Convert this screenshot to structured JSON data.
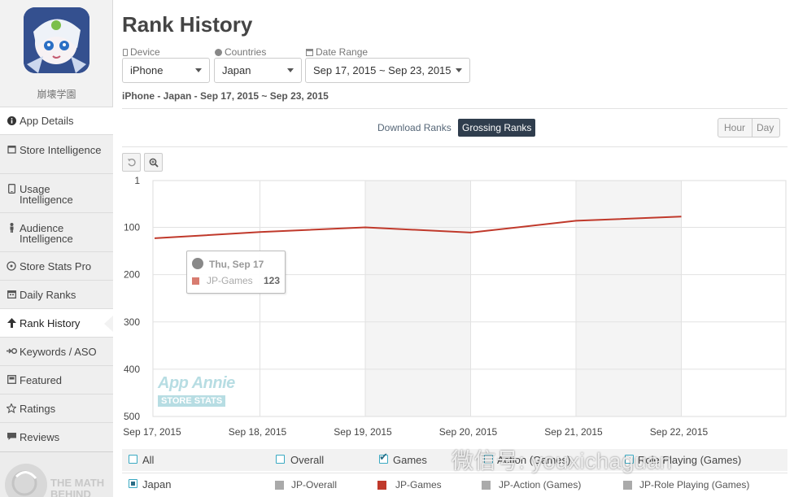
{
  "app": {
    "name": "崩壊学園"
  },
  "sidebar": {
    "items": [
      {
        "label": "App Details",
        "icon": "info-icon"
      },
      {
        "label": "Store Intelligence",
        "icon": "store-icon"
      },
      {
        "label": "Usage Intelligence",
        "icon": "phone-icon"
      },
      {
        "label": "Audience Intelligence",
        "icon": "person-icon"
      },
      {
        "label": "Store Stats Pro",
        "icon": "gauge-icon"
      },
      {
        "label": "Daily Ranks",
        "icon": "calendar-icon"
      },
      {
        "label": "Rank History",
        "icon": "arrow-up-icon"
      },
      {
        "label": "Keywords / ASO",
        "icon": "keyword-icon"
      },
      {
        "label": "Featured",
        "icon": "featured-icon"
      },
      {
        "label": "Ratings",
        "icon": "star-icon"
      },
      {
        "label": "Reviews",
        "icon": "chat-icon"
      }
    ],
    "active": "Rank History",
    "footer_logo": "THE MATH BEHIND"
  },
  "page": {
    "title": "Rank History"
  },
  "filters": {
    "device": {
      "label": "Device",
      "value": "iPhone"
    },
    "countries": {
      "label": "Countries",
      "value": "Japan"
    },
    "date_range": {
      "label": "Date Range",
      "value": "Sep 17, 2015 ~ Sep 23, 2015"
    }
  },
  "summary": "iPhone - Japan - Sep 17, 2015 ~ Sep 23, 2015",
  "rank_type": {
    "download": "Download Ranks",
    "grossing": "Grossing Ranks",
    "selected": "Grossing Ranks"
  },
  "granularity": {
    "hour": "Hour",
    "day": "Day",
    "selected": "Day"
  },
  "tooltip": {
    "date": "Thu, Sep 17",
    "series": "JP-Games",
    "value": "123"
  },
  "watermark": {
    "line1": "App Annie",
    "line2": "STORE STATS"
  },
  "wechat_watermark": "微信号: youxichaguan",
  "colors": {
    "series": "#c0392b",
    "accent": "#2f3d4d",
    "teal": "#36a8a0"
  },
  "chart_data": {
    "type": "line",
    "y_inverted": true,
    "ylim": [
      1,
      500
    ],
    "y_ticks": [
      "1",
      "100",
      "200",
      "300",
      "400",
      "500"
    ],
    "x": [
      "Sep 17, 2015",
      "Sep 18, 2015",
      "Sep 19, 2015",
      "Sep 20, 2015",
      "Sep 21, 2015",
      "Sep 22, 2015"
    ],
    "series": [
      {
        "name": "JP-Games",
        "values": [
          123,
          110,
          100,
          111,
          86,
          77
        ]
      }
    ]
  },
  "legend": {
    "categories": [
      {
        "label": "All",
        "checked": false
      },
      {
        "label": "Overall",
        "checked": false
      },
      {
        "label": "Games",
        "checked": true
      },
      {
        "label": "Action (Games)",
        "checked": false
      },
      {
        "label": "Role Playing (Games)",
        "checked": false
      }
    ],
    "country": {
      "label": "Japan",
      "checked": true
    },
    "series": [
      {
        "label": "JP-Overall",
        "color": "#aaaaaa"
      },
      {
        "label": "JP-Games",
        "color": "#c0392b"
      },
      {
        "label": "JP-Action (Games)",
        "color": "#aaaaaa"
      },
      {
        "label": "JP-Role Playing (Games)",
        "color": "#aaaaaa"
      }
    ]
  }
}
